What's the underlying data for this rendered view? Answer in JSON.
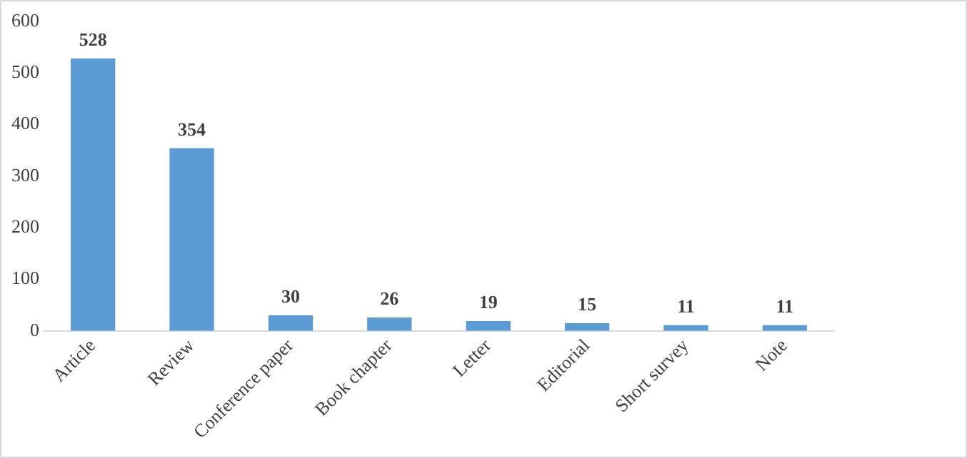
{
  "chart_data": {
    "type": "bar",
    "categories": [
      "Article",
      "Review",
      "Conference paper",
      "Book chapter",
      "Letter",
      "Editorial",
      "Short survey",
      "Note"
    ],
    "values": [
      528,
      354,
      30,
      26,
      19,
      15,
      11,
      11
    ],
    "color": "#5b9bd5",
    "ylim": [
      0,
      600
    ],
    "yticks": [
      0,
      100,
      200,
      300,
      400,
      500,
      600
    ],
    "grid": false,
    "data_labels": true
  }
}
